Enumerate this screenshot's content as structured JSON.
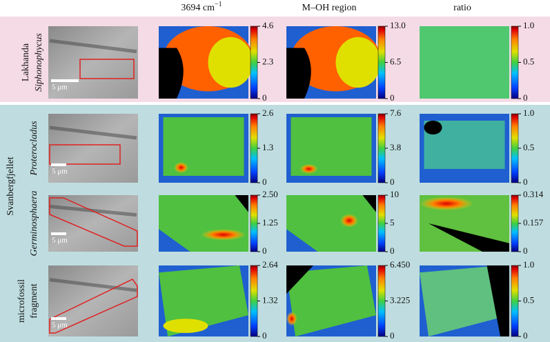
{
  "columns": [
    {
      "text": "3694 cm",
      "sup": "−1"
    },
    {
      "text": "M–OH region"
    },
    {
      "text": "ratio"
    }
  ],
  "group_label": "Svanbergfjellet",
  "rows": [
    {
      "group": "Lakhanda",
      "taxon": "Siphonophycus",
      "scale_bar": "5 μm",
      "colorbars": [
        [
          "4.6",
          "2.3",
          "0"
        ],
        [
          "13.0",
          "6.5",
          "0"
        ],
        [
          "1.0",
          "0.5",
          "0"
        ]
      ]
    },
    {
      "taxon": "Proterocladus",
      "scale_bar": "5 μm",
      "colorbars": [
        [
          "2.6",
          "1.3",
          "0"
        ],
        [
          "7.6",
          "3.8",
          "0"
        ],
        [
          "1.0",
          "0.5",
          "0"
        ]
      ]
    },
    {
      "taxon": "Germinosphaera",
      "scale_bar": "5 μm",
      "colorbars": [
        [
          "2.50",
          "1.25",
          "0"
        ],
        [
          "10",
          "5",
          "0"
        ],
        [
          "0.314",
          "0.157",
          "0"
        ]
      ]
    },
    {
      "label_lines": [
        "microfossil",
        "fragment"
      ],
      "scale_bar": "5 μm",
      "colorbars": [
        [
          "2.64",
          "1.32",
          "0"
        ],
        [
          "6.450",
          "3.225",
          "0"
        ],
        [
          "1.0",
          "0.5",
          "0"
        ]
      ]
    }
  ]
}
